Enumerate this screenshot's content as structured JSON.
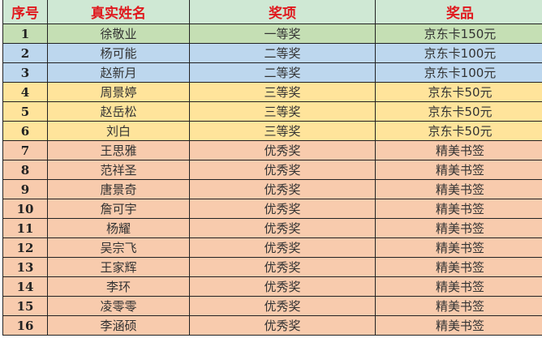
{
  "headers": [
    "序号",
    "真实姓名",
    "奖项",
    "奖品"
  ],
  "colors": {
    "header": "#cfe8d4",
    "first": "#c5dfb4",
    "second": "#bdd7ee",
    "third": "#ffe49b",
    "excellent": "#f8cbad",
    "header_text": "#e0191e"
  },
  "rows": [
    {
      "no": "1",
      "name": "徐敬业",
      "award": "一等奖",
      "prize": "京东卡150元",
      "tier": "c1"
    },
    {
      "no": "2",
      "name": "杨可能",
      "award": "二等奖",
      "prize": "京东卡100元",
      "tier": "c2"
    },
    {
      "no": "3",
      "name": "赵新月",
      "award": "二等奖",
      "prize": "京东卡100元",
      "tier": "c2"
    },
    {
      "no": "4",
      "name": "周景婷",
      "award": "三等奖",
      "prize": "京东卡50元",
      "tier": "c3"
    },
    {
      "no": "5",
      "name": "赵岳松",
      "award": "三等奖",
      "prize": "京东卡50元",
      "tier": "c3"
    },
    {
      "no": "6",
      "name": "刘白",
      "award": "三等奖",
      "prize": "京东卡50元",
      "tier": "c3"
    },
    {
      "no": "7",
      "name": "王思雅",
      "award": "优秀奖",
      "prize": "精美书签",
      "tier": "c4"
    },
    {
      "no": "8",
      "name": "范祥圣",
      "award": "优秀奖",
      "prize": "精美书签",
      "tier": "c4"
    },
    {
      "no": "9",
      "name": "唐景奇",
      "award": "优秀奖",
      "prize": "精美书签",
      "tier": "c4"
    },
    {
      "no": "10",
      "name": "詹可宇",
      "award": "优秀奖",
      "prize": "精美书签",
      "tier": "c4"
    },
    {
      "no": "11",
      "name": "杨耀",
      "award": "优秀奖",
      "prize": "精美书签",
      "tier": "c4"
    },
    {
      "no": "12",
      "name": "吴宗飞",
      "award": "优秀奖",
      "prize": "精美书签",
      "tier": "c4"
    },
    {
      "no": "13",
      "name": "王家辉",
      "award": "优秀奖",
      "prize": "精美书签",
      "tier": "c4"
    },
    {
      "no": "14",
      "name": "李环",
      "award": "优秀奖",
      "prize": "精美书签",
      "tier": "c4"
    },
    {
      "no": "15",
      "name": "凌零零",
      "award": "优秀奖",
      "prize": "精美书签",
      "tier": "c4"
    },
    {
      "no": "16",
      "name": "李涵硕",
      "award": "优秀奖",
      "prize": "精美书签",
      "tier": "c4"
    }
  ]
}
